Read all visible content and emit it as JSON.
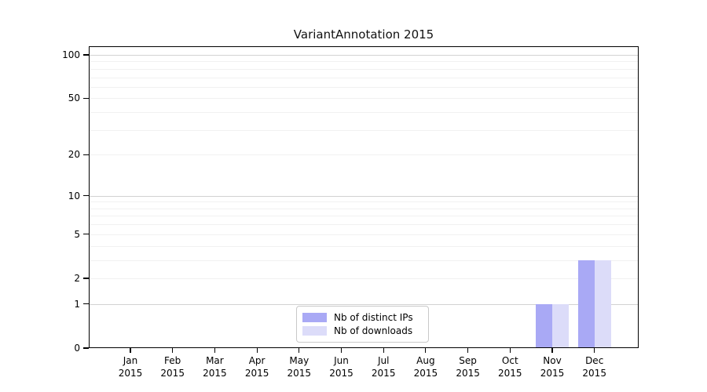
{
  "chart_data": {
    "type": "bar",
    "title": "VariantAnnotation 2015",
    "year_label": "2015",
    "categories": [
      "Jan",
      "Feb",
      "Mar",
      "Apr",
      "May",
      "Jun",
      "Jul",
      "Aug",
      "Sep",
      "Oct",
      "Nov",
      "Dec"
    ],
    "series": [
      {
        "name": "Nb of distinct IPs",
        "color": "#a9a9f5",
        "values": [
          0,
          0,
          0,
          0,
          0,
          0,
          0,
          0,
          0,
          0,
          1,
          3
        ]
      },
      {
        "name": "Nb of downloads",
        "color": "#dcdcf9",
        "values": [
          0,
          0,
          0,
          0,
          0,
          0,
          0,
          0,
          0,
          0,
          1,
          3
        ]
      }
    ],
    "y_axis": {
      "scale": "log10(value+1)",
      "tick_values": [
        0,
        1,
        2,
        5,
        10,
        20,
        50,
        100
      ],
      "major_gridlines": [
        1,
        10,
        100
      ],
      "minor_gridlines": [
        2,
        3,
        4,
        5,
        6,
        7,
        8,
        9,
        20,
        30,
        40,
        50,
        60,
        70,
        80,
        90
      ],
      "ylim": [
        0,
        115
      ]
    },
    "xlabel": "",
    "ylabel": "",
    "legend_position": "bottom-center-inside",
    "grid": "horizontal"
  },
  "colors": {
    "background": "#ffffff",
    "axis": "#000000",
    "major_grid": "#d2d2d2",
    "minor_grid": "#f1f1f1",
    "legend_border": "#c9c9c9"
  }
}
